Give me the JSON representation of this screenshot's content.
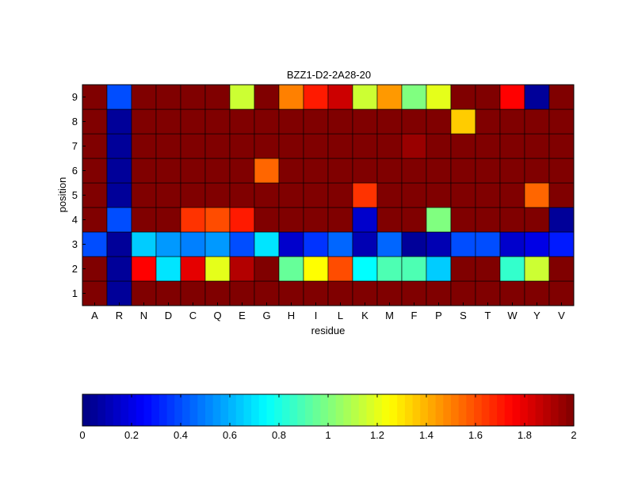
{
  "chart_data": {
    "type": "heatmap",
    "title": "BZZ1-D2-2A28-20",
    "xlabel": "residue",
    "ylabel": "position",
    "x_categories": [
      "A",
      "R",
      "N",
      "D",
      "C",
      "Q",
      "E",
      "G",
      "H",
      "I",
      "L",
      "K",
      "M",
      "F",
      "P",
      "S",
      "T",
      "W",
      "Y",
      "V"
    ],
    "y_categories": [
      "1",
      "2",
      "3",
      "4",
      "5",
      "6",
      "7",
      "8",
      "9"
    ],
    "values": [
      [
        2.0,
        0.05,
        2.0,
        2.0,
        2.0,
        2.0,
        2.0,
        2.0,
        2.0,
        2.0,
        2.0,
        2.0,
        2.0,
        2.0,
        2.0,
        2.0,
        2.0,
        2.0,
        2.0,
        2.0
      ],
      [
        2.0,
        0.05,
        1.75,
        0.7,
        1.8,
        1.2,
        1.9,
        2.0,
        0.95,
        1.25,
        1.6,
        0.75,
        0.9,
        0.9,
        0.65,
        2.0,
        2.0,
        0.85,
        1.15,
        2.0
      ],
      [
        0.4,
        0.05,
        0.65,
        0.55,
        0.5,
        0.55,
        0.4,
        0.7,
        0.15,
        0.35,
        0.45,
        0.1,
        0.45,
        0.05,
        0.1,
        0.4,
        0.4,
        0.15,
        0.2,
        0.3
      ],
      [
        2.0,
        0.4,
        2.0,
        2.0,
        1.65,
        1.6,
        1.7,
        2.0,
        2.0,
        2.0,
        2.0,
        0.15,
        2.0,
        2.0,
        1.0,
        2.0,
        2.0,
        2.0,
        2.0,
        0.05
      ],
      [
        2.0,
        0.05,
        2.0,
        2.0,
        2.0,
        2.0,
        2.0,
        2.0,
        2.0,
        2.0,
        2.0,
        1.65,
        2.0,
        2.0,
        2.0,
        2.0,
        2.0,
        2.0,
        1.55,
        2.0
      ],
      [
        2.0,
        0.05,
        2.0,
        2.0,
        2.0,
        2.0,
        2.0,
        1.55,
        2.0,
        2.0,
        2.0,
        2.0,
        2.0,
        2.0,
        2.0,
        2.0,
        2.0,
        2.0,
        2.0,
        2.0
      ],
      [
        2.0,
        0.05,
        2.0,
        2.0,
        2.0,
        2.0,
        2.0,
        2.0,
        2.0,
        2.0,
        2.0,
        2.0,
        2.0,
        1.95,
        2.0,
        2.0,
        2.0,
        2.0,
        2.0,
        2.0
      ],
      [
        2.0,
        0.05,
        2.0,
        2.0,
        2.0,
        2.0,
        2.0,
        2.0,
        2.0,
        2.0,
        2.0,
        2.0,
        2.0,
        2.0,
        2.0,
        1.35,
        2.0,
        2.0,
        2.0,
        2.0
      ],
      [
        2.0,
        0.4,
        2.0,
        2.0,
        2.0,
        2.0,
        1.15,
        2.0,
        1.5,
        1.7,
        1.85,
        1.15,
        1.45,
        1.0,
        1.2,
        2.0,
        2.0,
        1.75,
        0.05,
        2.0
      ]
    ],
    "colorbar": {
      "colormap": "jet",
      "range": [
        0,
        2
      ],
      "ticks": [
        0,
        0.2,
        0.4,
        0.6,
        0.8,
        1,
        1.2,
        1.4,
        1.6,
        1.8,
        2
      ],
      "tick_labels": [
        "0",
        "0.2",
        "0.4",
        "0.6",
        "0.8",
        "1",
        "1.2",
        "1.4",
        "1.6",
        "1.8",
        "2"
      ],
      "placement": "bottom"
    },
    "grid": false
  }
}
